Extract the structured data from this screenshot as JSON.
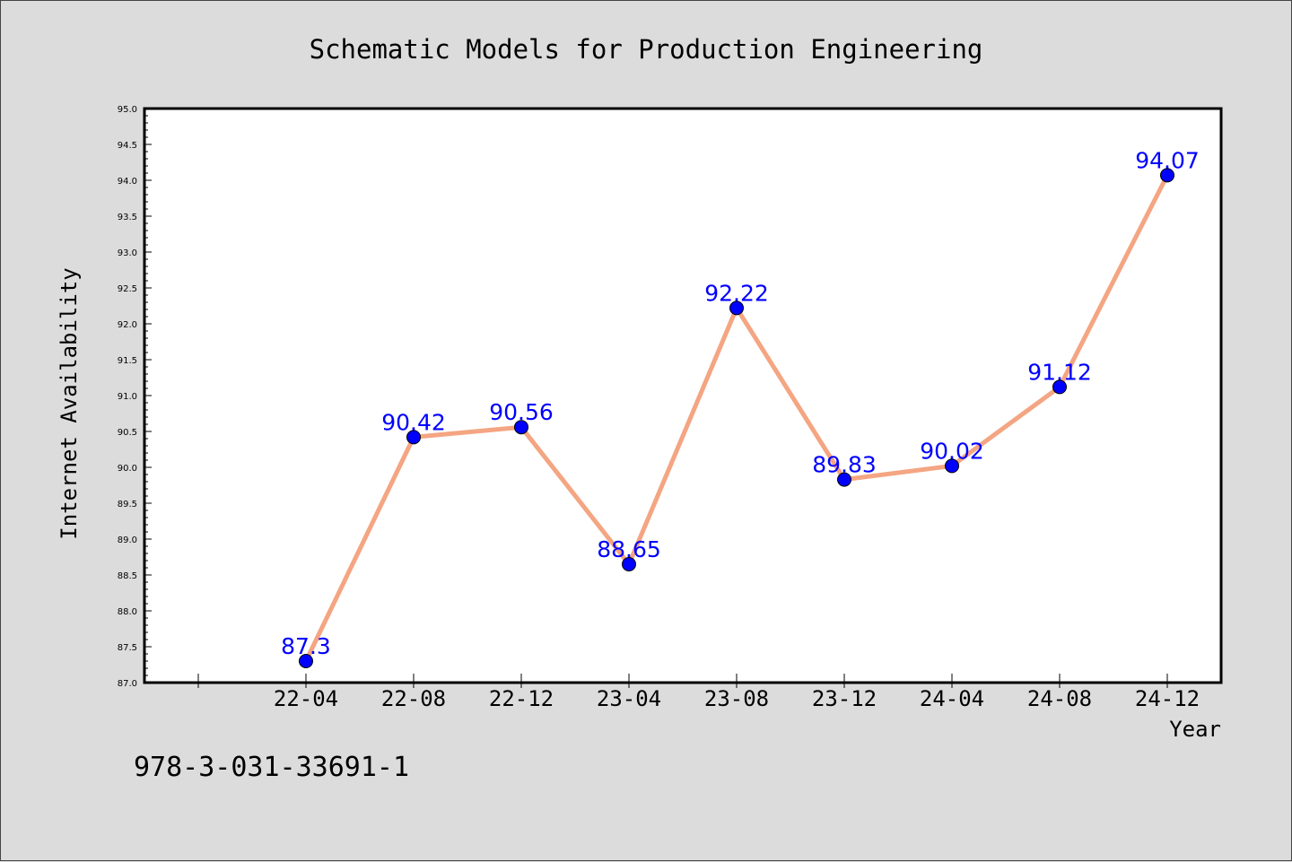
{
  "chart_data": {
    "type": "line",
    "title": "Schematic Models for Production Engineering",
    "xlabel": "Year",
    "ylabel": "Internet Availability",
    "categories": [
      "22-04",
      "22-08",
      "22-12",
      "23-04",
      "23-08",
      "23-12",
      "24-04",
      "24-08",
      "24-12"
    ],
    "series": [
      {
        "values": [
          87.3,
          90.42,
          90.56,
          88.65,
          92.22,
          89.83,
          90.02,
          91.12,
          94.07
        ],
        "data_labels": [
          "87.3",
          "90.42",
          "90.56",
          "88.65",
          "92.22",
          "89.83",
          "90.02",
          "91.12",
          "94.07"
        ]
      }
    ],
    "ylim": [
      87.0,
      95.0
    ],
    "yticks": [
      "87.0",
      "87.5",
      "88.0",
      "88.5",
      "89.0",
      "89.5",
      "90.0",
      "90.5",
      "91.0",
      "91.5",
      "92.0",
      "92.5",
      "93.0",
      "93.5",
      "94.0",
      "94.5",
      "95.0"
    ],
    "grid": false,
    "line_color": "#f4a582",
    "marker_color": "#0000ff",
    "label_color": "#0000ff"
  },
  "footer": {
    "isbn": "978-3-031-33691-1"
  }
}
